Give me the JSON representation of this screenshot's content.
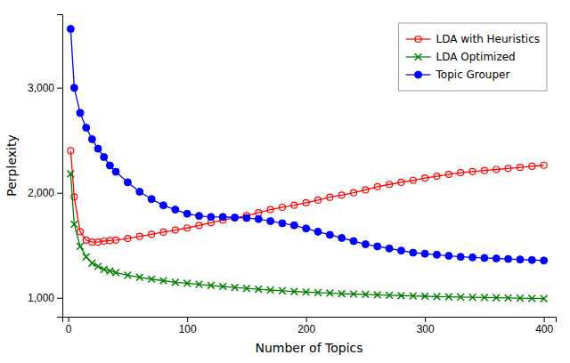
{
  "chart_data": {
    "type": "line",
    "xlabel": "Number of Topics",
    "ylabel": "Perplexity",
    "xlim": [
      -5,
      410
    ],
    "ylim": [
      820,
      3700
    ],
    "xticks": [
      0,
      100,
      200,
      300,
      400
    ],
    "yticks": [
      {
        "value": 1000,
        "label": "1,000"
      },
      {
        "value": 2000,
        "label": "2,000"
      },
      {
        "value": 3000,
        "label": "3,000"
      }
    ],
    "grid": false,
    "legend": "upper right",
    "x": [
      2,
      5,
      10,
      15,
      20,
      25,
      30,
      35,
      40,
      50,
      60,
      70,
      80,
      90,
      100,
      110,
      120,
      130,
      140,
      150,
      160,
      170,
      180,
      190,
      200,
      210,
      220,
      230,
      240,
      250,
      260,
      270,
      280,
      290,
      300,
      310,
      320,
      330,
      340,
      350,
      360,
      370,
      380,
      390,
      400
    ],
    "series": [
      {
        "name": "LDA with Heuristics",
        "color": "red",
        "marker": "circle-open",
        "values": [
          2400,
          1960,
          1630,
          1550,
          1530,
          1530,
          1540,
          1545,
          1550,
          1565,
          1585,
          1605,
          1625,
          1645,
          1665,
          1690,
          1715,
          1740,
          1762,
          1782,
          1810,
          1840,
          1862,
          1882,
          1905,
          1930,
          1958,
          1978,
          2000,
          2028,
          2058,
          2080,
          2100,
          2118,
          2140,
          2158,
          2175,
          2192,
          2202,
          2212,
          2222,
          2232,
          2242,
          2252,
          2262
        ]
      },
      {
        "name": "LDA Optimized",
        "color": "green",
        "marker": "x",
        "values": [
          2180,
          1700,
          1490,
          1390,
          1330,
          1300,
          1270,
          1255,
          1240,
          1215,
          1195,
          1178,
          1163,
          1148,
          1138,
          1128,
          1118,
          1108,
          1098,
          1090,
          1082,
          1074,
          1067,
          1061,
          1055,
          1050,
          1045,
          1040,
          1036,
          1032,
          1028,
          1024,
          1021,
          1018,
          1015,
          1012,
          1009,
          1007,
          1005,
          1003,
          1001,
          999,
          997,
          995,
          993
        ]
      },
      {
        "name": "Topic Grouper",
        "color": "blue",
        "marker": "circle",
        "values": [
          3560,
          3000,
          2760,
          2620,
          2510,
          2420,
          2340,
          2260,
          2200,
          2100,
          2010,
          1940,
          1880,
          1840,
          1800,
          1780,
          1770,
          1770,
          1765,
          1760,
          1750,
          1730,
          1710,
          1690,
          1660,
          1630,
          1600,
          1570,
          1540,
          1510,
          1490,
          1470,
          1450,
          1430,
          1420,
          1410,
          1400,
          1390,
          1385,
          1380,
          1375,
          1370,
          1365,
          1360,
          1355
        ]
      }
    ]
  }
}
